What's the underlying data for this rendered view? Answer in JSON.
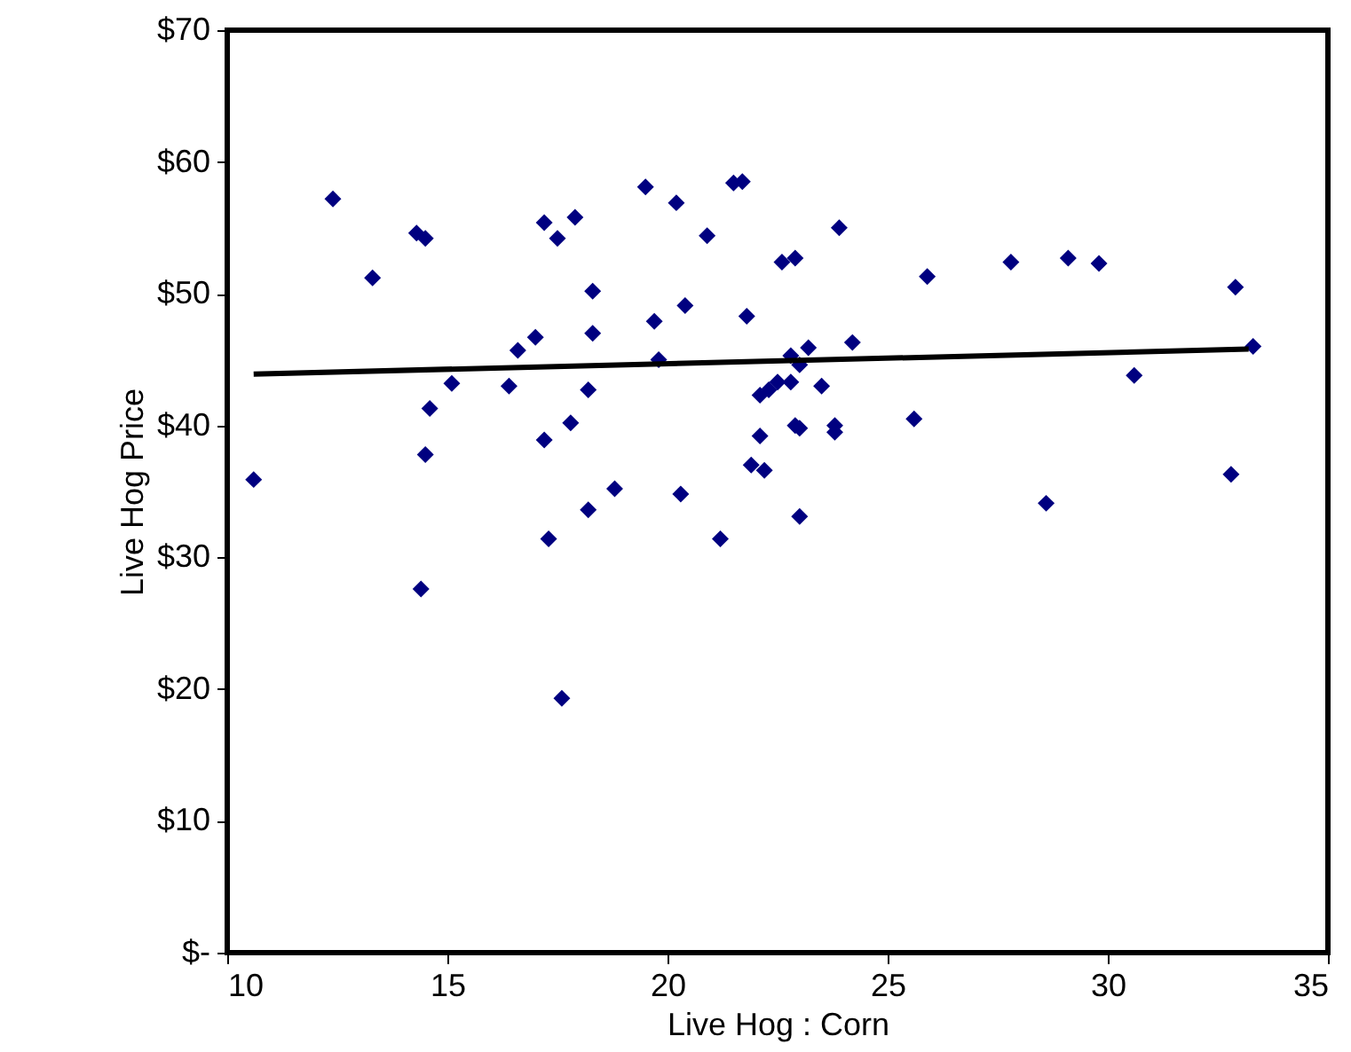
{
  "chart_data": {
    "type": "scatter",
    "xlabel": "Live  Hog : Corn",
    "ylabel": "Live Hog Price",
    "xlim": [
      10,
      35
    ],
    "xticks": [
      10,
      15,
      20,
      25,
      30,
      35
    ],
    "ylim": [
      0,
      70
    ],
    "yticks": [
      {
        "value": 0,
        "label": "$-"
      },
      {
        "value": 10,
        "label": "$10"
      },
      {
        "value": 20,
        "label": "$20"
      },
      {
        "value": 30,
        "label": "$30"
      },
      {
        "value": 40,
        "label": "$40"
      },
      {
        "value": 50,
        "label": "$50"
      },
      {
        "value": 60,
        "label": "$60"
      },
      {
        "value": 70,
        "label": "$70"
      }
    ],
    "grid": false,
    "marker": "diamond",
    "series": [
      {
        "color": "#000080",
        "x": [
          10.6,
          12.4,
          13.3,
          14.3,
          14.5,
          14.4,
          14.5,
          14.6,
          15.1,
          16.4,
          16.6,
          17.0,
          17.2,
          17.2,
          17.3,
          17.5,
          17.6,
          17.8,
          17.9,
          18.2,
          18.2,
          18.3,
          18.3,
          18.8,
          19.5,
          19.7,
          19.8,
          20.2,
          20.3,
          20.4,
          20.9,
          21.2,
          21.5,
          21.7,
          21.8,
          21.9,
          22.1,
          22.1,
          22.2,
          22.3,
          22.5,
          22.6,
          22.8,
          22.8,
          22.9,
          22.9,
          23.0,
          23.0,
          23.0,
          23.2,
          23.5,
          23.8,
          23.8,
          23.9,
          24.2,
          25.6,
          25.9,
          27.8,
          28.6,
          29.1,
          29.8,
          30.6,
          32.8,
          32.9,
          33.3
        ],
        "values": [
          35.9,
          57.2,
          51.2,
          54.6,
          54.2,
          27.6,
          37.8,
          41.3,
          43.2,
          43.0,
          45.7,
          46.7,
          55.4,
          38.9,
          31.4,
          54.2,
          19.3,
          40.2,
          55.8,
          42.7,
          33.6,
          50.2,
          47.0,
          35.2,
          58.1,
          47.9,
          45.0,
          56.9,
          34.8,
          49.1,
          54.4,
          31.4,
          58.4,
          58.5,
          48.3,
          37.0,
          42.3,
          39.2,
          36.6,
          42.7,
          43.3,
          52.4,
          45.3,
          43.3,
          52.7,
          40.0,
          39.8,
          44.6,
          33.1,
          45.9,
          43.0,
          40.0,
          39.5,
          55.0,
          46.3,
          40.5,
          51.3,
          52.4,
          34.1,
          52.7,
          52.3,
          43.8,
          36.3,
          50.5,
          46.0
        ]
      },
      {
        "type": "line",
        "color": "#000000",
        "marker": "none",
        "line_style": "solid",
        "x": [
          10.6,
          33.2
        ],
        "values": [
          43.9,
          45.8
        ]
      }
    ]
  }
}
